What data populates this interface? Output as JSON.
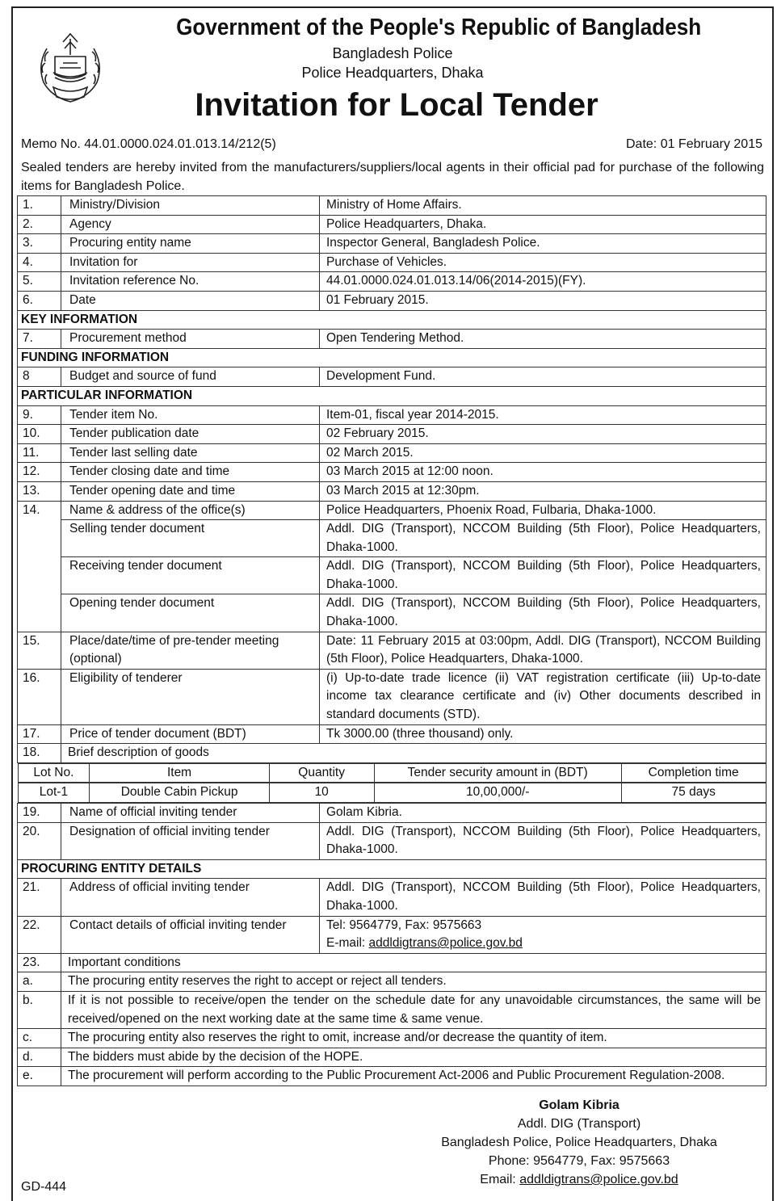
{
  "header": {
    "title": "Government of the People's Republic of Bangladesh",
    "org": "Bangladesh Police",
    "office": "Police Headquarters, Dhaka",
    "doc_title": "Invitation for Local Tender"
  },
  "memo": "Memo No. 44.01.0000.024.01.013.14/212(5)",
  "date": "Date: 01 February 2015",
  "intro": "Sealed tenders are hereby invited from the manufacturers/suppliers/local agents in their official pad for purchase of the following items for Bangladesh Police.",
  "rows": [
    {
      "num": "1.",
      "label": "Ministry/Division",
      "value": "Ministry of Home Affairs."
    },
    {
      "num": "2.",
      "label": "Agency",
      "value": "Police Headquarters, Dhaka."
    },
    {
      "num": "3.",
      "label": " Procuring entity name",
      "value": "Inspector General, Bangladesh Police."
    },
    {
      "num": "4.",
      "label": "Invitation for",
      "value": "Purchase of Vehicles."
    },
    {
      "num": "5.",
      "label": "Invitation reference No.",
      "value": " 44.01.0000.024.01.013.14/06(2014-2015)(FY)."
    },
    {
      "num": "6.",
      "label": "Date",
      "value": "01 February 2015."
    },
    {
      "section": "KEY INFORMATION"
    },
    {
      "num": "7.",
      "label": "Procurement method",
      "value": "Open Tendering Method."
    },
    {
      "section": "FUNDING INFORMATION"
    },
    {
      "num": "8",
      "label": "Budget and source of fund",
      "value": "Development Fund."
    },
    {
      "section": "PARTICULAR INFORMATION"
    },
    {
      "num": "9.",
      "label": "Tender item No.",
      "value": "Item-01, fiscal year 2014-2015."
    },
    {
      "num": "10.",
      "label": "Tender publication date",
      "value": "02 February 2015."
    },
    {
      "num": "11.",
      "label": "Tender last selling date",
      "value": "02 March 2015."
    },
    {
      "num": "12.",
      "label": "Tender closing date and time",
      "value": "03 March 2015 at 12:00 noon."
    },
    {
      "num": "13.",
      "label": "Tender opening date and time",
      "value": "03 March 2015 at 12:30pm."
    },
    {
      "num": "14.",
      "span": 4,
      "label": "Name & address of the office(s)",
      "value": "Police Headquarters, Phoenix Road, Fulbaria, Dhaka-1000."
    },
    {
      "cont": true,
      "label": "Selling tender document",
      "value": "Addl. DIG (Transport), NCCOM Building (5th Floor), Police Headquarters, Dhaka-1000."
    },
    {
      "cont": true,
      "label": "Receiving tender document",
      "value": "Addl. DIG (Transport), NCCOM Building (5th Floor), Police Headquarters, Dhaka-1000."
    },
    {
      "cont": true,
      "label": "Opening tender document",
      "value": "Addl. DIG (Transport), NCCOM Building (5th Floor), Police Headquarters, Dhaka-1000."
    },
    {
      "num": "15.",
      "label": "Place/date/time of pre-tender meeting (optional)",
      "value": "Date: 11 February 2015 at 03:00pm, Addl. DIG (Transport), NCCOM Building (5th Floor), Police Headquarters, Dhaka-1000."
    },
    {
      "num": "16.",
      "label": "Eligibility of tenderer",
      "value": "(i) Up-to-date trade licence (ii) VAT registration certificate (iii) Up-to-date income tax clearance certificate and (iv) Other documents described in standard documents (STD)."
    },
    {
      "num": "17.",
      "label": "Price of tender document (BDT)",
      "value": "Tk 3000.00 (three thousand) only."
    },
    {
      "num": "18.",
      "label": "Brief description of goods",
      "wide": true
    },
    {
      "goods_header": true
    },
    {
      "goods_row": true
    },
    {
      "num": "19.",
      "label": "Name of official inviting tender",
      "value": "Golam Kibria."
    },
    {
      "num": "20.",
      "label": "Designation of official inviting tender",
      "value": "Addl. DIG (Transport), NCCOM Building (5th Floor), Police Headquarters, Dhaka-1000."
    },
    {
      "section": "PROCURING ENTITY DETAILS"
    },
    {
      "num": "21.",
      "label": "Address of official inviting tender",
      "value": "Addl. DIG (Transport), NCCOM Building (5th Floor), Police Headquarters, Dhaka-1000."
    },
    {
      "num": "22.",
      "label": "Contact details of official inviting tender",
      "value": "Tel: 9564779, Fax: 9575663",
      "email": "addldigtrans@police.gov.bd",
      "email_prefix": "E-mail: "
    },
    {
      "num": "23.",
      "label": "Important conditions",
      "wide": true
    },
    {
      "num": "a.",
      "label": "The procuring entity reserves the right to accept or reject all tenders.",
      "wide": true
    },
    {
      "num": "b.",
      "label": "If it is not possible to receive/open the tender on the schedule date for any unavoidable circumstances, the same will be received/opened on the next working date at the same time & same venue.",
      "wide": true
    },
    {
      "num": "c.",
      "label": "The procuring entity also reserves the right to omit, increase and/or decrease the quantity of item.",
      "wide": true
    },
    {
      "num": "d.",
      "label": "The bidders must abide by the decision of the HOPE.",
      "wide": true
    },
    {
      "num": "e.",
      "label": "The procurement will perform according to the Public Procurement Act-2006 and Public Procurement Regulation-2008.",
      "wide": true
    }
  ],
  "goods": {
    "headers": [
      "Lot No.",
      "Item",
      "Quantity",
      "Tender security amount in (BDT)",
      "Completion time"
    ],
    "row": [
      "Lot-1",
      "Double Cabin Pickup",
      "10",
      "10,00,000/-",
      "75 days"
    ]
  },
  "signature": {
    "name": "Golam Kibria",
    "designation": "Addl. DIG (Transport)",
    "office": "Bangladesh Police, Police Headquarters, Dhaka",
    "phone": "Phone: 9564779, Fax: 9575663",
    "email_prefix": "Email: ",
    "email": "addldigtrans@police.gov.bd"
  },
  "footer_code": "GD-444",
  "logo_icon": "bangladesh-police-emblem"
}
